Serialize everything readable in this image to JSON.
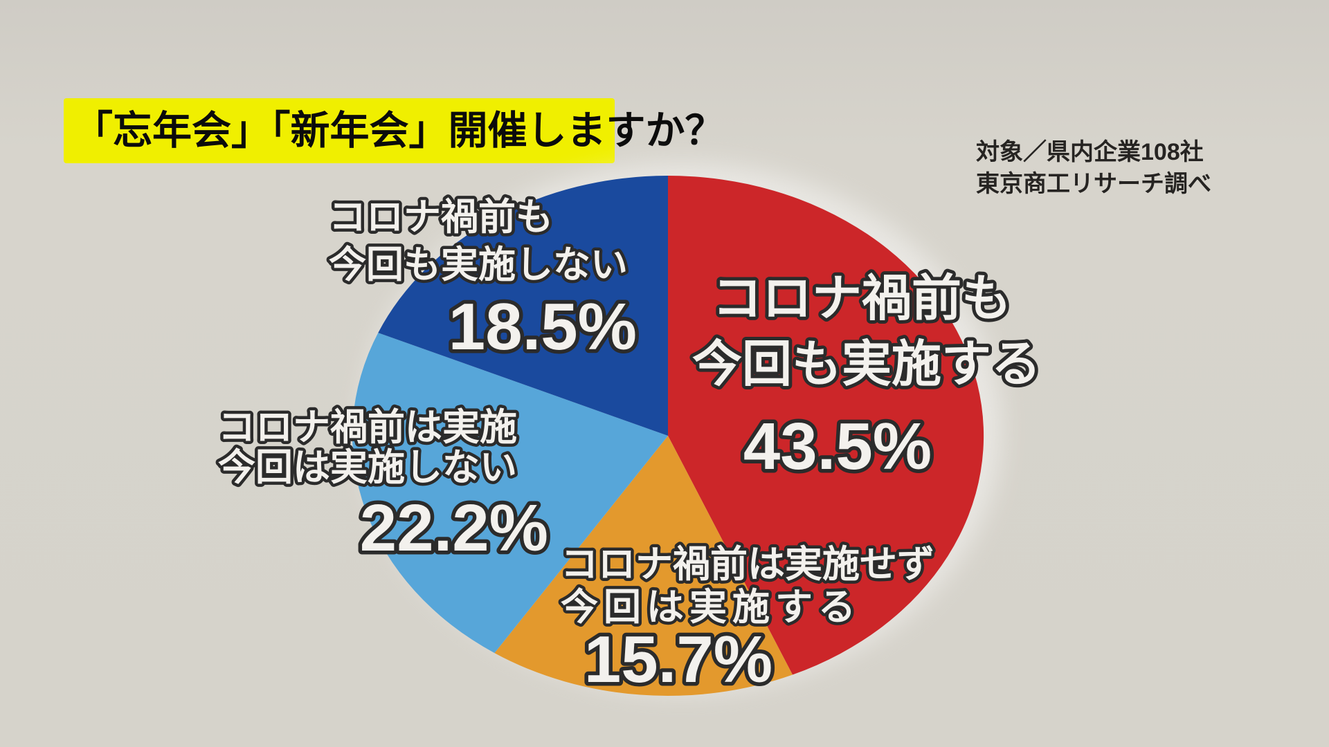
{
  "background_color": "#d6d3cb",
  "text_outline_color": "#2b2b2b",
  "label_text_color": "#f3f1ed",
  "title": {
    "text": "「忘年会」「新年会」開催しますか？",
    "bg": "#f0ef00",
    "color": "#0b0b0b"
  },
  "source": {
    "line1": "対象／県内企業108社",
    "line2": "東京商工リサーチ調べ"
  },
  "chart_data": {
    "type": "pie",
    "title": "「忘年会」「新年会」開催しますか？",
    "unit": "%",
    "start_angle": "12-oclock",
    "direction": "clockwise",
    "legend_position": "labels-on-chart",
    "slices": [
      {
        "label": [
          "コロナ禍前も",
          "今回も実施する"
        ],
        "pct_label": "43.5%",
        "value": 43.5,
        "color": "#cc2629"
      },
      {
        "label": [
          "コロナ禍前は実施せず",
          "今回は実施する"
        ],
        "pct_label": "15.7%",
        "value": 15.7,
        "color": "#e3992d"
      },
      {
        "label": [
          "コロナ禍前は実施",
          "今回は実施しない"
        ],
        "pct_label": "22.2%",
        "value": 22.2,
        "color": "#57a6d9"
      },
      {
        "label": [
          "コロナ禍前も",
          "今回も実施しない"
        ],
        "pct_label": "18.5%",
        "value": 18.5,
        "color": "#1a4a9e"
      }
    ],
    "source": [
      "対象／県内企業108社",
      "東京商工リサーチ調べ"
    ]
  }
}
